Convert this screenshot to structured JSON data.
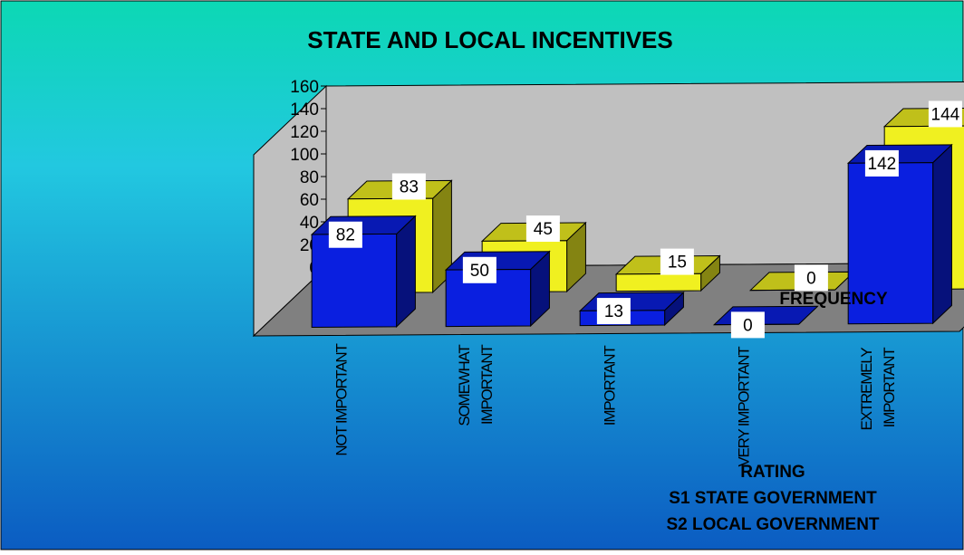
{
  "chart_data": {
    "type": "bar",
    "title": "STATE AND LOCAL INCENTIVES",
    "categories": [
      [
        "NOT IMPORTANT"
      ],
      [
        "SOMEWHAT",
        "IMPORTANT"
      ],
      [
        "IMPORTANT"
      ],
      [
        "VERY IMPORTANT"
      ],
      [
        "EXTREMELY",
        "IMPORTANT"
      ]
    ],
    "series": [
      {
        "name": "S1",
        "color": "#0a1fe0",
        "values": [
          82,
          50,
          13,
          0,
          142
        ]
      },
      {
        "name": "S2",
        "color": "#f0f020",
        "values": [
          83,
          45,
          15,
          0,
          144
        ]
      }
    ],
    "ylim": [
      0,
      160
    ],
    "yticks": [
      0,
      20,
      40,
      60,
      80,
      100,
      120,
      140,
      160
    ],
    "zlabel": "FREQUENCY",
    "rating_lines": [
      "RATING",
      "S1 STATE GOVERNMENT",
      "S2 LOCAL GOVERNMENT"
    ],
    "grid": false,
    "three_d": true
  },
  "colors": {
    "bg_top": "#0cd8b4",
    "bg_mid": "#22c8e0",
    "bg_bottom": "#0b5cc2",
    "wall": "#c0c0c0",
    "floor": "#808080"
  }
}
